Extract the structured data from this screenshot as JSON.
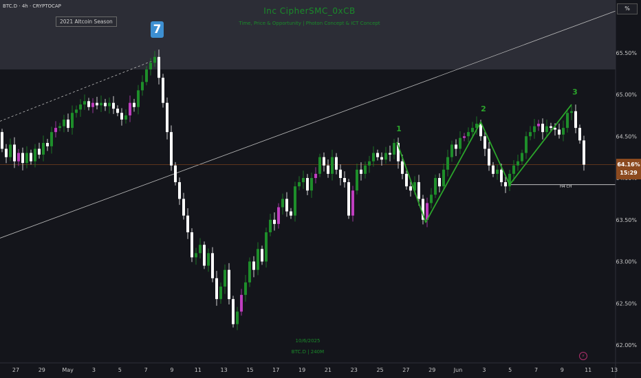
{
  "header": {
    "symbol_line": "BTC.D · 4h · CRYPTOCAP",
    "annotation": "2021 Altcoin Season",
    "wave_badge": "7",
    "watermark_title": "Inc CipherSMC_0xCB",
    "watermark_subtitle": "Time, Price & Opportunity | Photon Concept & ICT Concept",
    "scale_button": "%"
  },
  "price_tag": {
    "price": "64.16%",
    "countdown": "15:29"
  },
  "footer_watermark": {
    "date": "10/6/2025",
    "symbol": "BTC.D | 240M"
  },
  "colors": {
    "bull": "#1e8e2a",
    "bear": "#ffffff",
    "bull_alt": "#c03ec0",
    "wave": "#2ba52b",
    "background": "#14151b",
    "zone": "#2c2d36",
    "accent": "#8c4a1f"
  },
  "chart_data": {
    "type": "candlestick",
    "title": "",
    "ylim": [
      61.9,
      66.0
    ],
    "y_ticks": [
      "65.50%",
      "65.00%",
      "64.50%",
      "64.00%",
      "63.50%",
      "63.00%",
      "62.50%",
      "62.00%"
    ],
    "y_tick_values": [
      65.5,
      65.0,
      64.5,
      64.0,
      63.5,
      63.0,
      62.5,
      62.0
    ],
    "x_ticks": [
      "27",
      "29",
      "May",
      "3",
      "5",
      "7",
      "9",
      "11",
      "13",
      "15",
      "17",
      "19",
      "21",
      "23",
      "25",
      "27",
      "29",
      "Jun",
      "3",
      "5",
      "7",
      "9",
      "11",
      "13"
    ],
    "current_price": 64.16,
    "price_path": [
      {
        "t": 0,
        "v": 64.55
      },
      {
        "t": 6,
        "v": 64.35
      },
      {
        "t": 12,
        "v": 64.25
      },
      {
        "t": 18,
        "v": 64.4
      },
      {
        "t": 24,
        "v": 64.2
      },
      {
        "t": 30,
        "v": 64.3
      },
      {
        "t": 36,
        "v": 64.18
      },
      {
        "t": 42,
        "v": 64.3
      },
      {
        "t": 48,
        "v": 64.2
      },
      {
        "t": 54,
        "v": 64.35
      },
      {
        "t": 60,
        "v": 64.28
      },
      {
        "t": 66,
        "v": 64.42
      },
      {
        "t": 72,
        "v": 64.38
      },
      {
        "t": 78,
        "v": 64.55
      },
      {
        "t": 84,
        "v": 64.6
      },
      {
        "t": 90,
        "v": 64.62
      },
      {
        "t": 96,
        "v": 64.7
      },
      {
        "t": 102,
        "v": 64.6
      },
      {
        "t": 108,
        "v": 64.78
      },
      {
        "t": 114,
        "v": 64.82
      },
      {
        "t": 120,
        "v": 64.88
      },
      {
        "t": 126,
        "v": 64.92
      },
      {
        "t": 132,
        "v": 64.85
      },
      {
        "t": 138,
        "v": 64.9
      },
      {
        "t": 144,
        "v": 64.87
      },
      {
        "t": 150,
        "v": 64.9
      },
      {
        "t": 156,
        "v": 64.86
      },
      {
        "t": 162,
        "v": 64.9
      },
      {
        "t": 168,
        "v": 64.83
      },
      {
        "t": 174,
        "v": 64.78
      },
      {
        "t": 180,
        "v": 64.7
      },
      {
        "t": 186,
        "v": 64.75
      },
      {
        "t": 192,
        "v": 64.9
      },
      {
        "t": 198,
        "v": 64.85
      },
      {
        "t": 204,
        "v": 65.05
      },
      {
        "t": 210,
        "v": 65.15
      },
      {
        "t": 216,
        "v": 65.3
      },
      {
        "t": 222,
        "v": 65.38
      },
      {
        "t": 228,
        "v": 65.45
      },
      {
        "t": 234,
        "v": 65.2
      },
      {
        "t": 240,
        "v": 64.9
      },
      {
        "t": 246,
        "v": 64.55
      },
      {
        "t": 252,
        "v": 64.15
      },
      {
        "t": 258,
        "v": 63.95
      },
      {
        "t": 264,
        "v": 63.75
      },
      {
        "t": 270,
        "v": 63.55
      },
      {
        "t": 276,
        "v": 63.35
      },
      {
        "t": 282,
        "v": 63.05
      },
      {
        "t": 288,
        "v": 63.1
      },
      {
        "t": 294,
        "v": 63.2
      },
      {
        "t": 300,
        "v": 62.95
      },
      {
        "t": 306,
        "v": 63.1
      },
      {
        "t": 312,
        "v": 62.8
      },
      {
        "t": 318,
        "v": 62.55
      },
      {
        "t": 324,
        "v": 62.7
      },
      {
        "t": 330,
        "v": 62.9
      },
      {
        "t": 336,
        "v": 62.55
      },
      {
        "t": 342,
        "v": 62.25
      },
      {
        "t": 348,
        "v": 62.4
      },
      {
        "t": 354,
        "v": 62.6
      },
      {
        "t": 360,
        "v": 62.75
      },
      {
        "t": 366,
        "v": 63.0
      },
      {
        "t": 372,
        "v": 62.9
      },
      {
        "t": 378,
        "v": 63.15
      },
      {
        "t": 384,
        "v": 63.0
      },
      {
        "t": 390,
        "v": 63.35
      },
      {
        "t": 396,
        "v": 63.5
      },
      {
        "t": 402,
        "v": 63.45
      },
      {
        "t": 408,
        "v": 63.65
      },
      {
        "t": 414,
        "v": 63.75
      },
      {
        "t": 420,
        "v": 63.6
      },
      {
        "t": 426,
        "v": 63.55
      },
      {
        "t": 432,
        "v": 63.9
      },
      {
        "t": 438,
        "v": 63.95
      },
      {
        "t": 444,
        "v": 64.0
      },
      {
        "t": 450,
        "v": 63.85
      },
      {
        "t": 456,
        "v": 64.0
      },
      {
        "t": 462,
        "v": 64.05
      },
      {
        "t": 468,
        "v": 64.25
      },
      {
        "t": 474,
        "v": 64.15
      },
      {
        "t": 480,
        "v": 64.05
      },
      {
        "t": 486,
        "v": 64.25
      },
      {
        "t": 492,
        "v": 64.1
      },
      {
        "t": 498,
        "v": 64.0
      },
      {
        "t": 504,
        "v": 63.95
      },
      {
        "t": 510,
        "v": 63.55
      },
      {
        "t": 516,
        "v": 63.85
      },
      {
        "t": 522,
        "v": 64.1
      },
      {
        "t": 528,
        "v": 64.05
      },
      {
        "t": 534,
        "v": 64.15
      },
      {
        "t": 540,
        "v": 64.2
      },
      {
        "t": 546,
        "v": 64.3
      },
      {
        "t": 552,
        "v": 64.25
      },
      {
        "t": 558,
        "v": 64.22
      },
      {
        "t": 564,
        "v": 64.3
      },
      {
        "t": 570,
        "v": 64.28
      },
      {
        "t": 576,
        "v": 64.42
      },
      {
        "t": 582,
        "v": 64.2
      },
      {
        "t": 588,
        "v": 64.05
      },
      {
        "t": 594,
        "v": 63.9
      },
      {
        "t": 600,
        "v": 63.85
      },
      {
        "t": 606,
        "v": 63.95
      },
      {
        "t": 612,
        "v": 63.75
      },
      {
        "t": 618,
        "v": 63.5
      },
      {
        "t": 624,
        "v": 63.7
      },
      {
        "t": 630,
        "v": 63.8
      },
      {
        "t": 636,
        "v": 64.0
      },
      {
        "t": 642,
        "v": 63.9
      },
      {
        "t": 648,
        "v": 64.1
      },
      {
        "t": 654,
        "v": 64.25
      },
      {
        "t": 660,
        "v": 64.4
      },
      {
        "t": 666,
        "v": 64.35
      },
      {
        "t": 672,
        "v": 64.48
      },
      {
        "t": 678,
        "v": 64.5
      },
      {
        "t": 684,
        "v": 64.55
      },
      {
        "t": 690,
        "v": 64.6
      },
      {
        "t": 696,
        "v": 64.65
      },
      {
        "t": 702,
        "v": 64.5
      },
      {
        "t": 708,
        "v": 64.35
      },
      {
        "t": 714,
        "v": 64.15
      },
      {
        "t": 720,
        "v": 64.05
      },
      {
        "t": 726,
        "v": 64.1
      },
      {
        "t": 732,
        "v": 63.95
      },
      {
        "t": 738,
        "v": 63.9
      },
      {
        "t": 744,
        "v": 64.05
      },
      {
        "t": 750,
        "v": 64.15
      },
      {
        "t": 756,
        "v": 64.2
      },
      {
        "t": 762,
        "v": 64.3
      },
      {
        "t": 768,
        "v": 64.5
      },
      {
        "t": 774,
        "v": 64.55
      },
      {
        "t": 780,
        "v": 64.62
      },
      {
        "t": 786,
        "v": 64.65
      },
      {
        "t": 792,
        "v": 64.55
      },
      {
        "t": 798,
        "v": 64.62
      },
      {
        "t": 804,
        "v": 64.6
      },
      {
        "t": 810,
        "v": 64.58
      },
      {
        "t": 816,
        "v": 64.52
      },
      {
        "t": 822,
        "v": 64.6
      },
      {
        "t": 828,
        "v": 64.78
      },
      {
        "t": 834,
        "v": 64.8
      },
      {
        "t": 840,
        "v": 64.6
      },
      {
        "t": 846,
        "v": 64.45
      },
      {
        "t": 848,
        "v": 64.16
      }
    ],
    "wave_lines": [
      [
        {
          "t": 577,
          "v": 64.43
        },
        {
          "t": 619,
          "v": 63.47
        },
        {
          "t": 699,
          "v": 64.67
        },
        {
          "t": 741,
          "v": 63.92
        },
        {
          "t": 831,
          "v": 64.88
        }
      ]
    ],
    "wave_labels": [
      {
        "label": "1",
        "t": 580,
        "v": 64.56
      },
      {
        "label": "2",
        "t": 703,
        "v": 64.8
      },
      {
        "label": "3",
        "t": 836,
        "v": 65.0
      }
    ],
    "annotations": [
      {
        "label": "H4 CH",
        "v": 63.92
      }
    ],
    "trendlines": [
      {
        "style": "solid",
        "from": {
          "t": 0,
          "v": 63.28
        },
        "to": {
          "t": 895,
          "v": 66.0
        }
      },
      {
        "style": "dashed",
        "from": {
          "t": 0,
          "v": 64.68
        },
        "to": {
          "t": 230,
          "v": 65.43
        }
      }
    ],
    "supply_zone": [
      65.3,
      66.0
    ]
  }
}
